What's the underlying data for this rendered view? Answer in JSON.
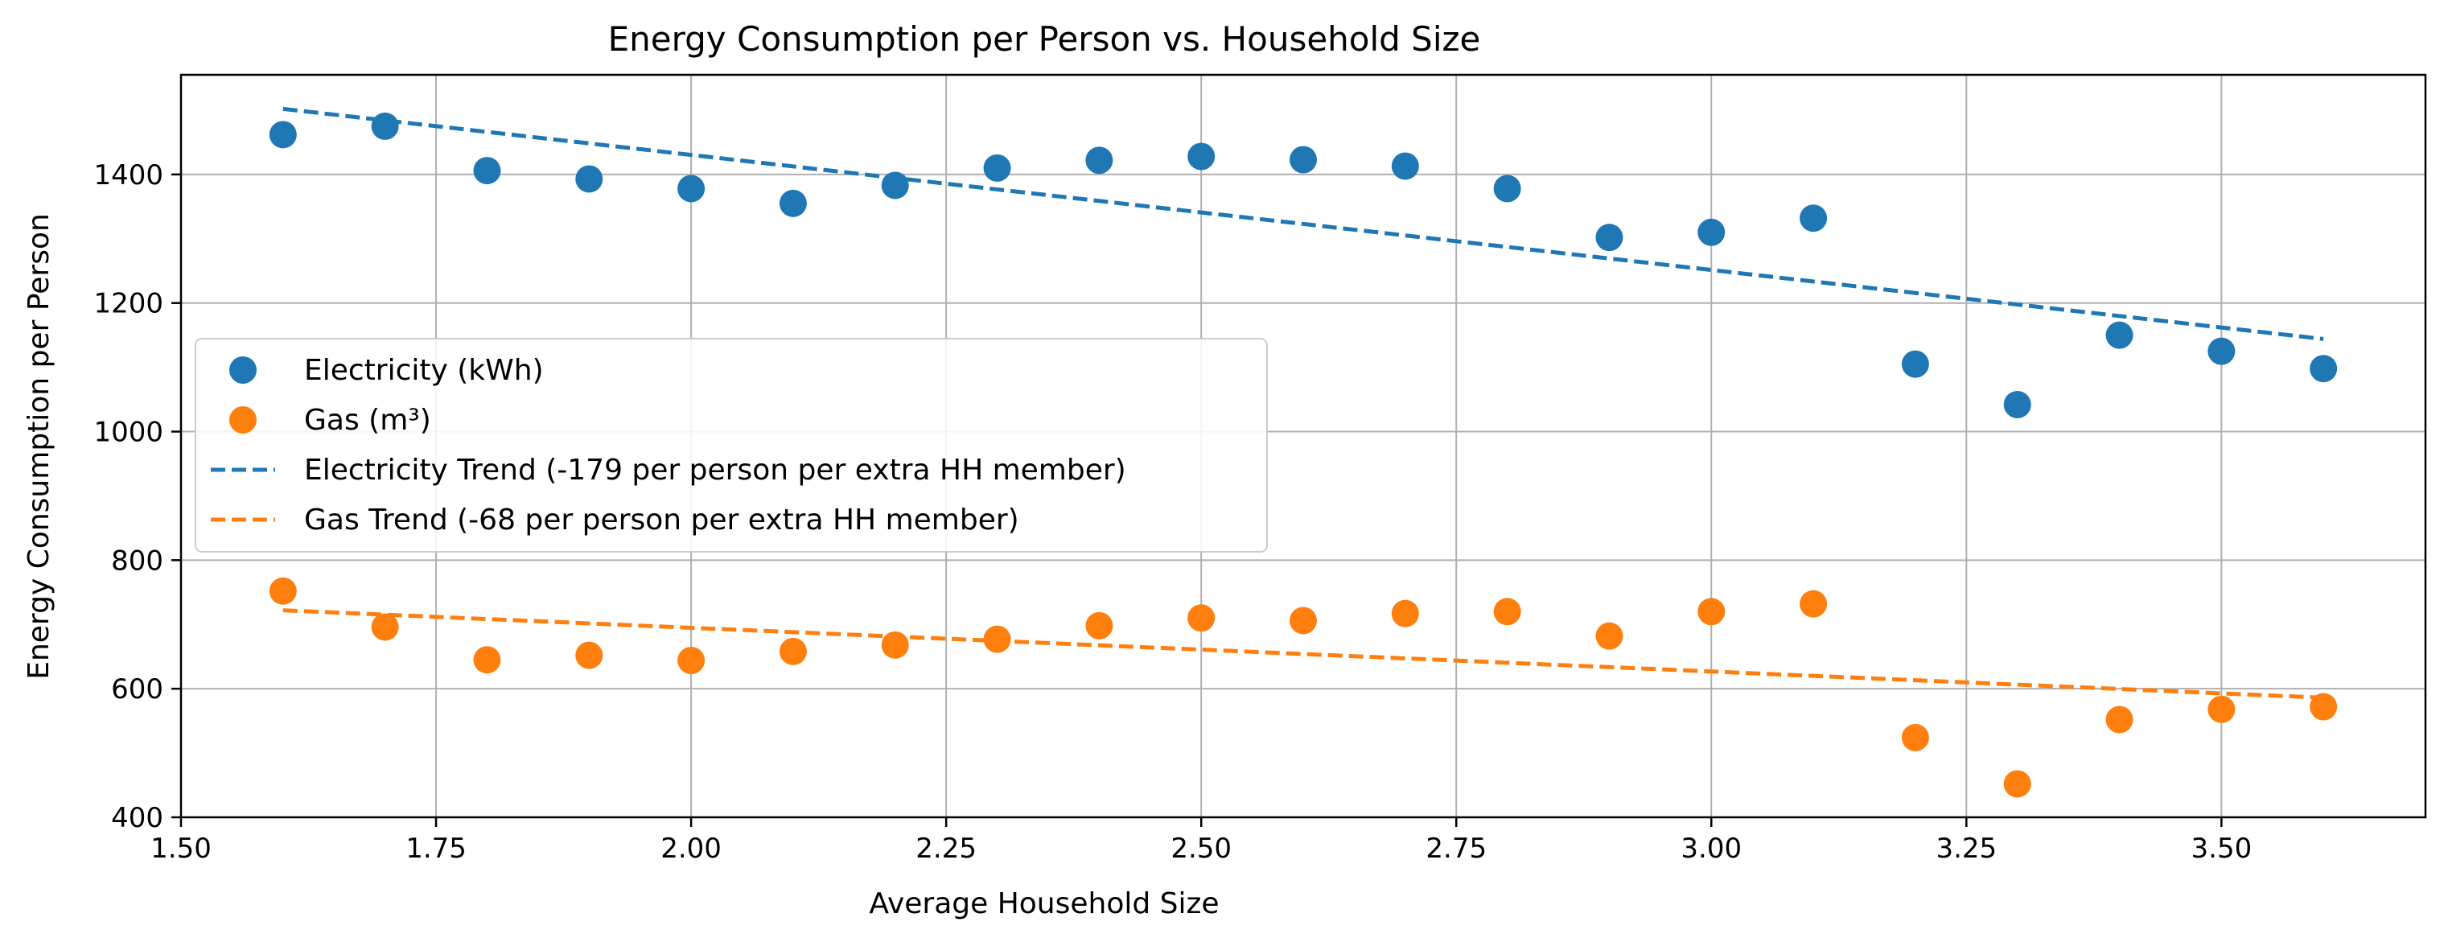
{
  "chart_data": {
    "type": "scatter",
    "title": "Energy Consumption per Person vs. Household Size",
    "xlabel": "Average Household Size",
    "ylabel": "Energy Consumption per Person",
    "xlim": [
      1.5,
      3.7
    ],
    "ylim": [
      400,
      1555
    ],
    "xticks": [
      1.5,
      1.75,
      2.0,
      2.25,
      2.5,
      2.75,
      3.0,
      3.25,
      3.5
    ],
    "xtick_labels": [
      "1.50",
      "1.75",
      "2.00",
      "2.25",
      "2.50",
      "2.75",
      "3.00",
      "3.25",
      "3.50"
    ],
    "yticks": [
      400,
      600,
      800,
      1000,
      1200,
      1400
    ],
    "ytick_labels": [
      "400",
      "600",
      "800",
      "1000",
      "1200",
      "1400"
    ],
    "grid": true,
    "legend_position": "center-left",
    "x": [
      1.6,
      1.7,
      1.8,
      1.9,
      2.0,
      2.1,
      2.2,
      2.3,
      2.4,
      2.5,
      2.6,
      2.7,
      2.8,
      2.9,
      3.0,
      3.1,
      3.2,
      3.3,
      3.4,
      3.5,
      3.6
    ],
    "series": [
      {
        "name": "Electricity (kWh)",
        "kind": "scatter",
        "color": "#1f77b4",
        "values": [
          1462,
          1475,
          1406,
          1393,
          1378,
          1355,
          1383,
          1410,
          1422,
          1428,
          1423,
          1413,
          1378,
          1302,
          1310,
          1332,
          1105,
          1042,
          1150,
          1125,
          1098
        ]
      },
      {
        "name": "Gas (m³)",
        "kind": "scatter",
        "color": "#ff7f0e",
        "values": [
          752,
          696,
          645,
          652,
          644,
          658,
          668,
          677,
          698,
          710,
          706,
          717,
          720,
          682,
          720,
          732,
          524,
          452,
          552,
          568,
          572
        ]
      },
      {
        "name": "Electricity Trend (-179 per person per extra HH member)",
        "kind": "trend",
        "color": "#1f77b4",
        "x_range": [
          1.6,
          3.6
        ],
        "y_range": [
          1502,
          1144
        ]
      },
      {
        "name": "Gas Trend (-68 per person per extra HH member)",
        "kind": "trend",
        "color": "#ff7f0e",
        "x_range": [
          1.6,
          3.6
        ],
        "y_range": [
          722,
          586
        ]
      }
    ]
  }
}
